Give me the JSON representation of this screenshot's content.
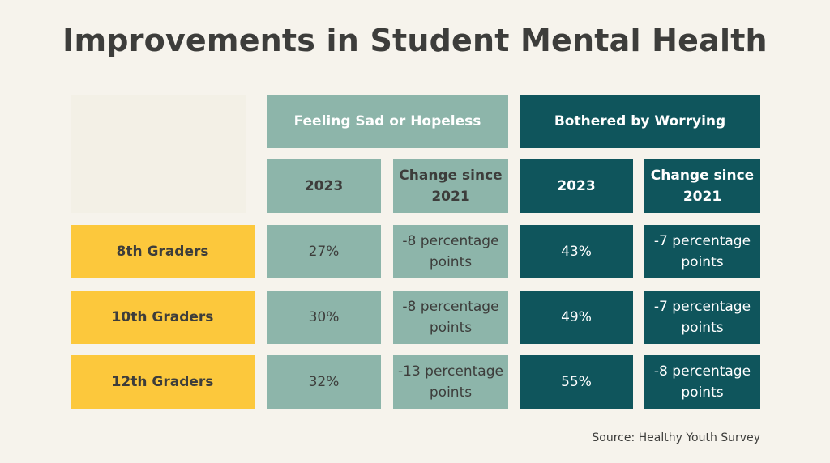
{
  "title": "Improvements in Student Mental Health",
  "source": "Source: Healthy Youth Survey",
  "colors": {
    "background": "#f6f3ec",
    "sad_hopeless": "#8db5aa",
    "worrying": "#0f555c",
    "row_label": "#fcc83c",
    "text_dark": "#3d3d3b",
    "text_light": "#ffffff"
  },
  "chart_data": {
    "type": "table",
    "title": "Improvements in Student Mental Health",
    "groups": [
      {
        "name": "Feeling Sad or Hopeless",
        "columns": [
          "2023",
          "Change since 2021"
        ]
      },
      {
        "name": "Bothered by Worrying",
        "columns": [
          "2023",
          "Change since 2021"
        ]
      }
    ],
    "rows": [
      {
        "label": "8th Graders",
        "sad_2023": "27%",
        "sad_change": "-8 percentage points",
        "worry_2023": "43%",
        "worry_change": "-7 percentage points"
      },
      {
        "label": "10th Graders",
        "sad_2023": "30%",
        "sad_change": "-8 percentage points",
        "worry_2023": "49%",
        "worry_change": "-7 percentage points"
      },
      {
        "label": "12th Graders",
        "sad_2023": "32%",
        "sad_change": "-13 percentage points",
        "worry_2023": "55%",
        "worry_change": "-8 percentage points"
      }
    ],
    "source": "Source: Healthy Youth Survey"
  }
}
